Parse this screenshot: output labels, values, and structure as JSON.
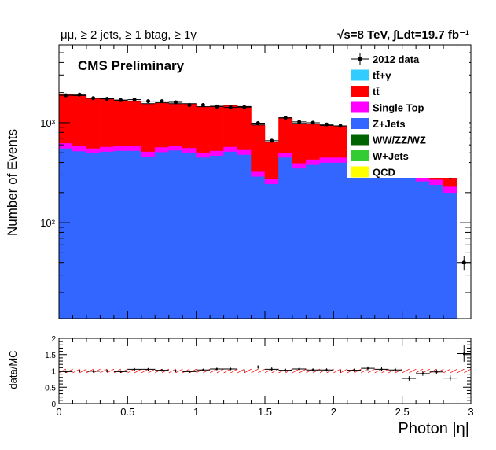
{
  "chart_data": [
    {
      "type": "bar",
      "stacked": true,
      "title_left": "μμ, ≥ 2 jets, ≥ 1 btag, ≥ 1γ",
      "title_right": "√s=8 TeV, ∫Ldt=19.7 fb⁻¹",
      "label": "CMS Preliminary",
      "ylabel": "Number of Events",
      "yscale": "log",
      "ylim": [
        11,
        6000
      ],
      "xlim": [
        0,
        3
      ],
      "y_ticks": [
        {
          "value": 100,
          "label": "10²"
        },
        {
          "value": 1000,
          "label": "10³"
        }
      ],
      "legend_position": "top-right",
      "bin_width": 0.1,
      "x": [
        0.05,
        0.15,
        0.25,
        0.35,
        0.45,
        0.55,
        0.65,
        0.75,
        0.85,
        0.95,
        1.05,
        1.15,
        1.25,
        1.35,
        1.45,
        1.55,
        1.65,
        1.75,
        1.85,
        1.95,
        2.05,
        2.15,
        2.25,
        2.35,
        2.45,
        2.55,
        2.65,
        2.75,
        2.85,
        2.95
      ],
      "series": [
        {
          "name": "QCD",
          "color": "#ffff00",
          "values": [
            0,
            0,
            0,
            0,
            0,
            0,
            0,
            0,
            0,
            0,
            0,
            0,
            0,
            0,
            0,
            0,
            0,
            0,
            0,
            0,
            0,
            0,
            0,
            0,
            0,
            0,
            0,
            0,
            0,
            0
          ]
        },
        {
          "name": "W+Jets",
          "color": "#33cc33",
          "values": [
            0,
            0,
            0,
            0,
            0,
            0,
            0,
            0,
            0,
            0,
            0,
            0,
            0,
            0,
            0,
            0,
            0,
            0,
            0,
            0,
            0,
            0,
            0,
            0,
            0,
            0,
            0,
            0,
            0,
            0
          ]
        },
        {
          "name": "WW/ZZ/WZ",
          "color": "#006400",
          "values": [
            0,
            0,
            0,
            0,
            0,
            0,
            0,
            0,
            0,
            0,
            0,
            0,
            0,
            0,
            0,
            0,
            0,
            0,
            0,
            0,
            0,
            0,
            0,
            0,
            0,
            0,
            0,
            0,
            0,
            0
          ]
        },
        {
          "name": "Z+Jets",
          "color": "#3366ff",
          "values": [
            555,
            520,
            495,
            515,
            525,
            525,
            460,
            510,
            530,
            505,
            450,
            470,
            515,
            480,
            290,
            245,
            450,
            350,
            380,
            400,
            400,
            400,
            400,
            400,
            400,
            300,
            260,
            240,
            200,
            0
          ]
        },
        {
          "name": "Single Top",
          "color": "#ff00ff",
          "values": [
            70,
            65,
            60,
            60,
            60,
            60,
            55,
            60,
            60,
            55,
            55,
            55,
            60,
            55,
            40,
            30,
            50,
            45,
            50,
            50,
            50,
            50,
            50,
            50,
            50,
            40,
            35,
            30,
            30,
            0
          ]
        },
        {
          "name": "tt̄",
          "color": "#ff0000",
          "values": [
            1305,
            1285,
            1205,
            1165,
            1095,
            1055,
            1035,
            1010,
            960,
            990,
            940,
            935,
            920,
            915,
            620,
            365,
            620,
            590,
            540,
            490,
            480,
            440,
            440,
            440,
            420,
            320,
            310,
            340,
            150,
            0
          ]
        },
        {
          "name": "tt̄+γ",
          "color": "#33ccff",
          "values": [
            0,
            0,
            0,
            0,
            0,
            0,
            0,
            0,
            0,
            0,
            0,
            0,
            0,
            0,
            0,
            0,
            0,
            0,
            0,
            0,
            0,
            0,
            0,
            0,
            0,
            0,
            0,
            0,
            0,
            0
          ]
        }
      ],
      "data": {
        "name": "2012 data",
        "values": [
          1880,
          1910,
          1760,
          1730,
          1680,
          1700,
          1640,
          1640,
          1600,
          1500,
          1500,
          1450,
          1420,
          1430,
          990,
          660,
          1120,
          1020,
          1000,
          960,
          930,
          880,
          890,
          880,
          870,
          620,
          600,
          620,
          290,
          40
        ]
      }
    },
    {
      "type": "scatter",
      "ylabel": "data/MC",
      "xlabel": "Photon |η|",
      "ylim": [
        0,
        2
      ],
      "xlim": [
        0,
        3
      ],
      "y_ticks": [
        {
          "value": 0,
          "label": "0"
        },
        {
          "value": 0.5,
          "label": "0.5"
        },
        {
          "value": 1,
          "label": "1"
        },
        {
          "value": 1.5,
          "label": "1.5"
        },
        {
          "value": 2,
          "label": "2"
        }
      ],
      "x_ticks": [
        {
          "value": 0,
          "label": "0"
        },
        {
          "value": 0.5,
          "label": "0.5"
        },
        {
          "value": 1,
          "label": "1"
        },
        {
          "value": 1.5,
          "label": "1.5"
        },
        {
          "value": 2,
          "label": "2"
        },
        {
          "value": 2.5,
          "label": "2.5"
        },
        {
          "value": 3,
          "label": "3"
        }
      ],
      "x": [
        0.05,
        0.15,
        0.25,
        0.35,
        0.45,
        0.55,
        0.65,
        0.75,
        0.85,
        0.95,
        1.05,
        1.15,
        1.25,
        1.35,
        1.45,
        1.55,
        1.65,
        1.75,
        1.85,
        1.95,
        2.05,
        2.15,
        2.25,
        2.35,
        2.45,
        2.55,
        2.65,
        2.75,
        2.85,
        2.95
      ],
      "values": [
        0.98,
        1.0,
        0.99,
        1.0,
        0.98,
        1.05,
        1.05,
        1.02,
        1.0,
        0.98,
        1.03,
        1.06,
        1.06,
        1.0,
        1.12,
        1.05,
        1.02,
        1.06,
        1.03,
        1.03,
        1.0,
        1.02,
        1.08,
        1.05,
        1.03,
        0.77,
        0.92,
        0.97,
        0.78,
        1.53
      ],
      "errors": [
        0.04,
        0.04,
        0.04,
        0.04,
        0.04,
        0.04,
        0.04,
        0.04,
        0.04,
        0.04,
        0.04,
        0.04,
        0.04,
        0.05,
        0.05,
        0.06,
        0.05,
        0.05,
        0.05,
        0.05,
        0.05,
        0.05,
        0.06,
        0.06,
        0.06,
        0.07,
        0.07,
        0.07,
        0.08,
        0.25
      ]
    }
  ]
}
